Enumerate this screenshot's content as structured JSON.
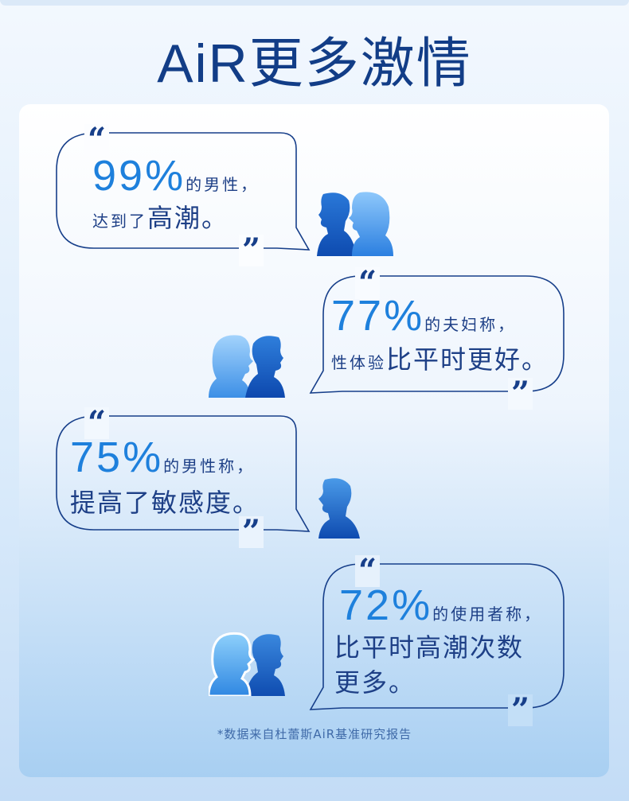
{
  "headline": "AiR更多激情",
  "stats": [
    {
      "percent": "99%",
      "subject": "的男性，",
      "line2_small": "达到了",
      "line2_big": "高潮。"
    },
    {
      "percent": "77%",
      "subject": "的夫妇称，",
      "line2_small": "性体验",
      "line2_big": "比平时更好。"
    },
    {
      "percent": "75%",
      "subject": "的男性称，",
      "line2_big": "提高了敏感度。"
    },
    {
      "percent": "72%",
      "subject": "的使用者称，",
      "line2_big": "比平时高潮次数",
      "line3_big": "更多。"
    }
  ],
  "quote_open": "“",
  "quote_close": "”",
  "footnote": "*数据来自杜蕾斯AiR基准研究报告",
  "colors": {
    "navy": "#173f8a",
    "accent": "#1e80dc",
    "light_blue": "#5fb0f2"
  }
}
